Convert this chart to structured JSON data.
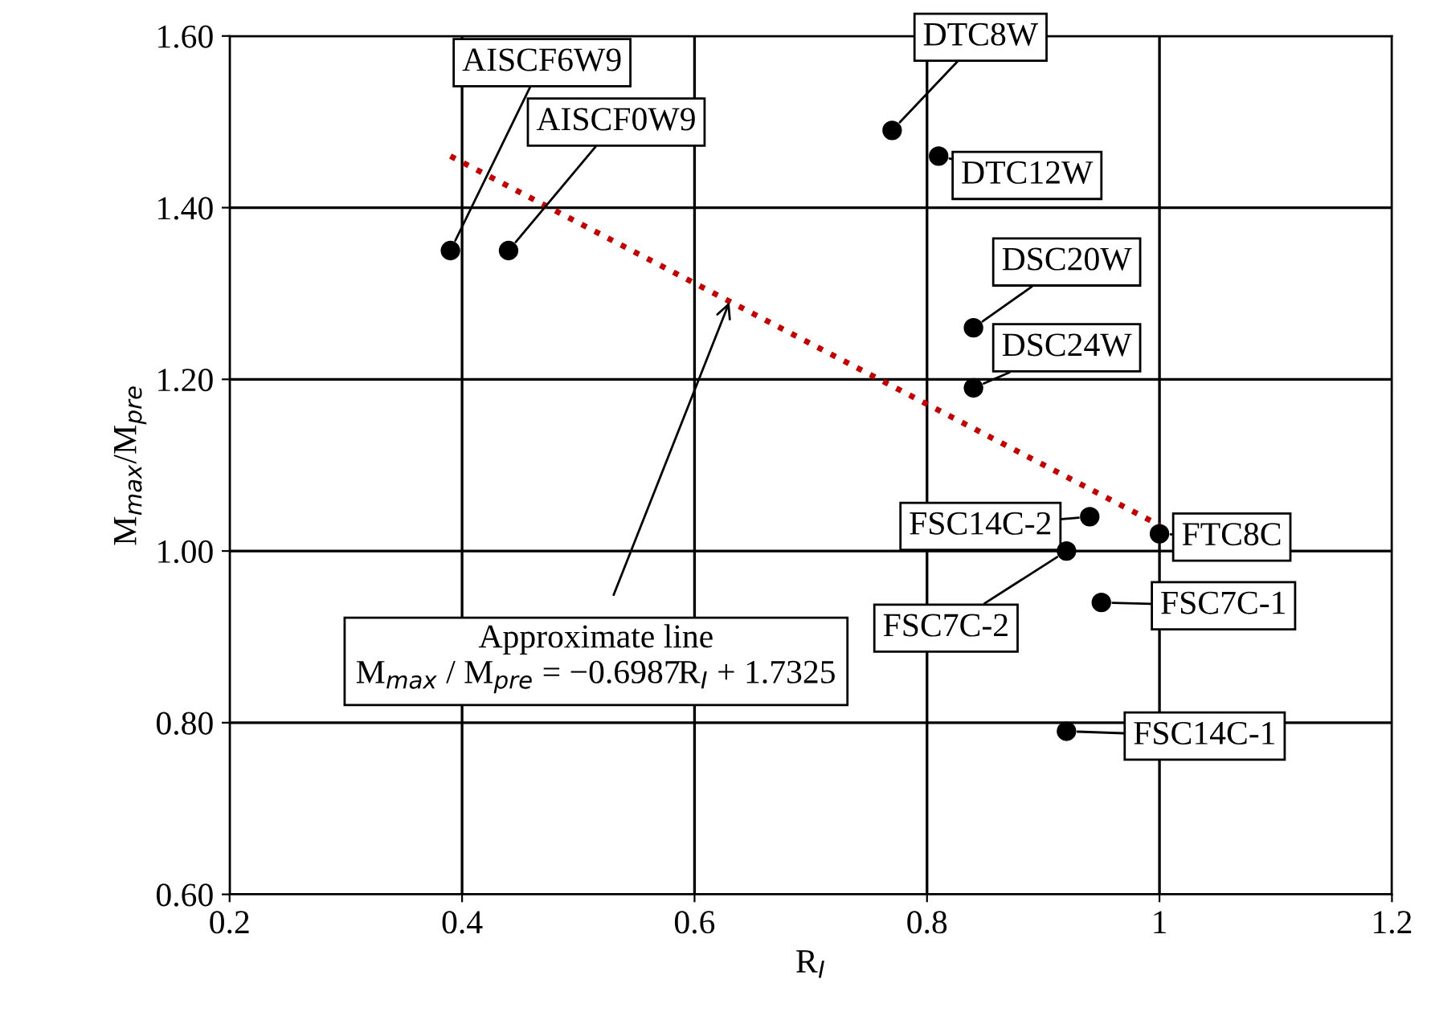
{
  "chart_data": {
    "type": "scatter",
    "xlabel": "R$_{I}$",
    "ylabel": "M$_{max}$/M$_{pre}$",
    "xlim": [
      0.2,
      1.2
    ],
    "xticks": [
      0.2,
      0.4,
      0.6,
      0.8,
      {
        "value": 1,
        "label": "1"
      },
      1.2
    ],
    "ylim": [
      0.6,
      1.6
    ],
    "yticks": [
      {
        "value": 0.6,
        "label": "0.60"
      },
      {
        "value": 0.8,
        "label": "0.80"
      },
      {
        "value": 1.0,
        "label": "1.00"
      },
      {
        "value": 1.2,
        "label": "1.20"
      },
      {
        "value": 1.4,
        "label": "1.40"
      },
      {
        "value": 1.6,
        "label": "1.60"
      }
    ],
    "grid": true,
    "series": [
      {
        "type": "scatter",
        "marker": "circle",
        "color": "#000000",
        "x": [
          0.39,
          0.44,
          0.77,
          0.81,
          0.84,
          0.84,
          0.94,
          1.0,
          0.92,
          0.95,
          0.92
        ],
        "values": [
          1.35,
          1.35,
          1.49,
          1.46,
          1.26,
          1.19,
          1.04,
          1.02,
          1.0,
          0.94,
          0.79
        ]
      },
      {
        "type": "line",
        "color": "#c00000",
        "line_style": "dotted",
        "x": [
          0.39,
          1.0
        ],
        "values": [
          1.46,
          1.03
        ]
      }
    ],
    "annotations": [
      {
        "text": "AISCF6W9",
        "x": 0.39,
        "y": 1.35
      },
      {
        "text": "AISCF0W9",
        "x": 0.44,
        "y": 1.35
      },
      {
        "text": "DTC8W",
        "x": 0.77,
        "y": 1.49
      },
      {
        "text": "DTC12W",
        "x": 0.81,
        "y": 1.46
      },
      {
        "text": "DSC20W",
        "x": 0.84,
        "y": 1.26
      },
      {
        "text": "DSC24W",
        "x": 0.84,
        "y": 1.19
      },
      {
        "text": "FSC14C-2",
        "x": 0.94,
        "y": 1.04
      },
      {
        "text": "FTC8C",
        "x": 1.0,
        "y": 1.02
      },
      {
        "text": "FSC7C-2",
        "x": 0.92,
        "y": 1.0
      },
      {
        "text": "FSC7C-1",
        "x": 0.95,
        "y": 0.94
      },
      {
        "text": "FSC14C-1",
        "x": 0.92,
        "y": 0.79
      },
      {
        "text": "Approximate line",
        "x": 0.63,
        "y": 1.29
      },
      "M$_{max}$ / M$_{pre}$ = −0.6987R$_{I}$ + 1.7325"
    ]
  }
}
